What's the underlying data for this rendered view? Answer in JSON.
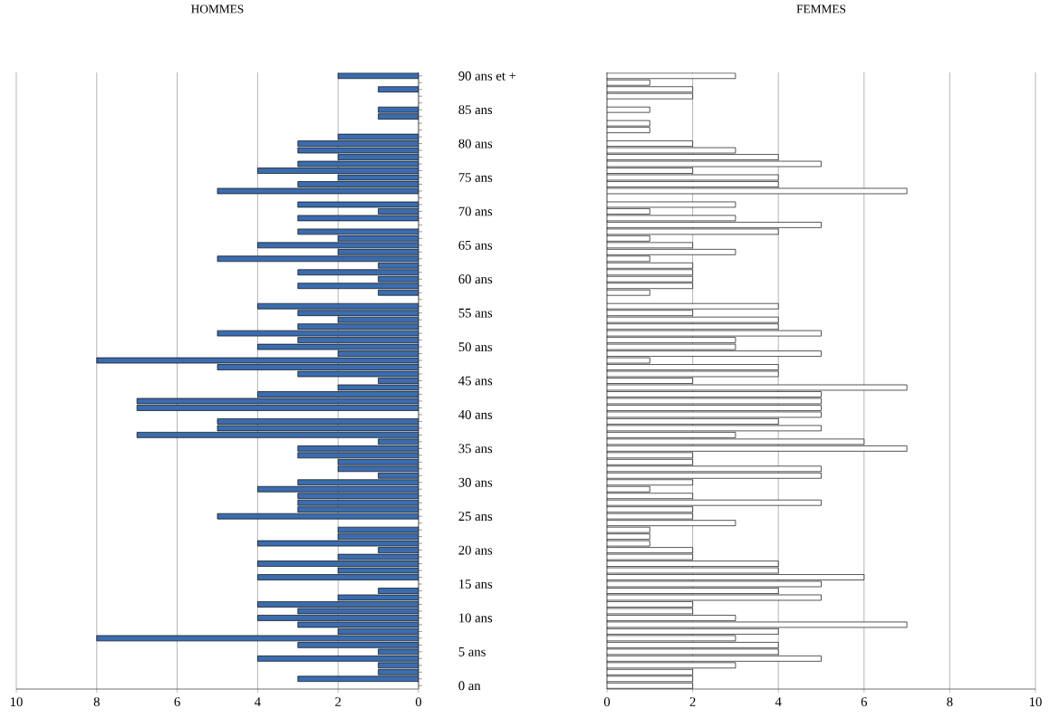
{
  "chart_data": [
    {
      "type": "bar",
      "orientation": "horizontal",
      "title": "HOMMES",
      "categories": [
        "90 ans et +",
        null,
        null,
        null,
        null,
        "85 ans",
        null,
        null,
        null,
        null,
        "80 ans",
        null,
        null,
        null,
        null,
        "75 ans",
        null,
        null,
        null,
        null,
        "70 ans",
        null,
        null,
        null,
        null,
        "65 ans",
        null,
        null,
        null,
        null,
        "60 ans",
        null,
        null,
        null,
        null,
        "55 ans",
        null,
        null,
        null,
        null,
        "50 ans",
        null,
        null,
        null,
        null,
        "45 ans",
        null,
        null,
        null,
        null,
        "40 ans",
        null,
        null,
        null,
        null,
        "35 ans",
        null,
        null,
        null,
        null,
        "30 ans",
        null,
        null,
        null,
        null,
        "25 ans",
        null,
        null,
        null,
        null,
        "20 ans",
        null,
        null,
        null,
        null,
        "15 ans",
        null,
        null,
        null,
        null,
        "10 ans",
        null,
        null,
        null,
        null,
        "5 ans",
        null,
        null,
        null,
        null,
        "0 an"
      ],
      "values": [
        2,
        0,
        1,
        0,
        0,
        1,
        1,
        0,
        0,
        2,
        3,
        3,
        2,
        3,
        4,
        2,
        3,
        5,
        0,
        3,
        1,
        3,
        0,
        3,
        2,
        4,
        2,
        5,
        1,
        3,
        1,
        3,
        1,
        0,
        4,
        3,
        2,
        3,
        5,
        3,
        4,
        2,
        8,
        5,
        3,
        1,
        2,
        4,
        7,
        7,
        0,
        5,
        5,
        7,
        1,
        3,
        3,
        2,
        2,
        1,
        3,
        4,
        3,
        3,
        3,
        5,
        0,
        2,
        2,
        4,
        1,
        2,
        4,
        2,
        4,
        0,
        1,
        2,
        4,
        3,
        4,
        3,
        2,
        8,
        3,
        1,
        4,
        1,
        1,
        3,
        0
      ],
      "color": "#3b6cae",
      "xlim": [
        10,
        0
      ],
      "xticks": [
        10,
        8,
        6,
        4,
        2,
        0
      ],
      "grid": "x"
    },
    {
      "type": "bar",
      "orientation": "horizontal",
      "title": "FEMMES",
      "values": [
        3,
        1,
        2,
        2,
        0,
        1,
        0,
        1,
        1,
        0,
        2,
        3,
        4,
        5,
        2,
        4,
        4,
        7,
        0,
        3,
        1,
        3,
        5,
        4,
        1,
        2,
        3,
        1,
        2,
        2,
        2,
        2,
        1,
        0,
        4,
        2,
        4,
        4,
        5,
        3,
        3,
        5,
        1,
        4,
        4,
        2,
        7,
        5,
        5,
        5,
        5,
        4,
        5,
        3,
        6,
        7,
        2,
        2,
        5,
        5,
        2,
        1,
        2,
        5,
        2,
        2,
        3,
        1,
        1,
        1,
        2,
        2,
        4,
        4,
        6,
        5,
        4,
        5,
        2,
        2,
        3,
        7,
        4,
        3,
        4,
        4,
        5,
        3,
        2,
        2,
        2
      ],
      "color": "#ffffff",
      "xlim": [
        0,
        10
      ],
      "xticks": [
        0,
        2,
        4,
        6,
        8,
        10
      ],
      "grid": "x",
      "tick_labels": "x"
    }
  ]
}
